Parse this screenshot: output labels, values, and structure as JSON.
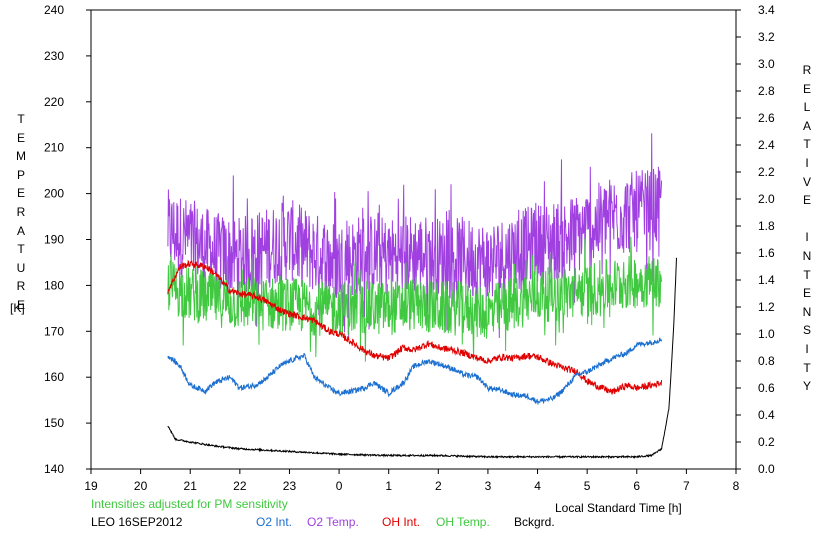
{
  "chart_data": {
    "type": "line",
    "title": "",
    "left_axis_label": "TEMPERATURE",
    "left_axis_unit": "[K]",
    "right_axis_label": "RELATIVE INTENSITY",
    "xlabel": "Local Standard Time [h]",
    "note": "Intensities adjusted for PM sensitivity",
    "station_date": "LEO 16SEP2012",
    "x_ticks": [
      "19",
      "20",
      "21",
      "22",
      "23",
      "0",
      "1",
      "2",
      "3",
      "4",
      "5",
      "6",
      "7",
      "8"
    ],
    "x_range": [
      19,
      32
    ],
    "y_left_ticks": [
      "140",
      "150",
      "160",
      "170",
      "180",
      "190",
      "200",
      "210",
      "220",
      "230",
      "240"
    ],
    "y_left_range": [
      140,
      240
    ],
    "y_right_ticks": [
      "0.0",
      "0.2",
      "0.4",
      "0.6",
      "0.8",
      "1.0",
      "1.2",
      "1.4",
      "1.6",
      "1.8",
      "2.0",
      "2.2",
      "2.4",
      "2.6",
      "2.8",
      "3.0",
      "3.2",
      "3.4"
    ],
    "y_right_range": [
      0,
      3.4
    ],
    "grid": false,
    "legend_position": "bottom",
    "series": [
      {
        "name": "O2 Temp.",
        "axis": "left",
        "color": "#a040e0",
        "amp": 9,
        "x": [
          20.55,
          21,
          21.5,
          22,
          22.5,
          23,
          23.5,
          24,
          24.5,
          25,
          25.5,
          26,
          26.5,
          27,
          27.5,
          28,
          28.5,
          29,
          29.5,
          30,
          30.5
        ],
        "y": [
          192,
          190,
          187,
          186,
          188,
          190,
          187,
          185,
          187,
          186,
          187,
          186,
          186,
          185,
          187,
          189,
          190,
          192,
          195,
          196,
          197
        ]
      },
      {
        "name": "OH Temp.",
        "axis": "left",
        "color": "#40c840",
        "amp": 6,
        "x": [
          20.55,
          21,
          21.5,
          22,
          22.5,
          23,
          23.5,
          24,
          24.5,
          25,
          25.5,
          26,
          26.5,
          27,
          27.5,
          28,
          28.5,
          29,
          29.5,
          30,
          30.5
        ],
        "y": [
          180,
          178,
          177,
          176,
          176,
          176,
          175,
          175,
          175,
          175,
          176,
          175,
          175,
          174,
          176,
          178,
          178,
          179,
          180,
          181,
          181
        ]
      },
      {
        "name": "OH Int.",
        "axis": "right",
        "color": "#e00000",
        "amp": 0.025,
        "x": [
          20.55,
          20.8,
          21,
          21.3,
          21.5,
          21.8,
          22,
          22.3,
          22.5,
          22.8,
          23,
          23.3,
          23.5,
          23.8,
          24,
          24.3,
          24.5,
          24.7,
          25,
          25.3,
          25.5,
          25.8,
          26,
          26.3,
          26.5,
          26.8,
          27,
          27.3,
          27.5,
          27.8,
          28,
          28.3,
          28.5,
          28.8,
          29,
          29.3,
          29.5,
          29.8,
          30,
          30.3,
          30.5
        ],
        "y": [
          1.32,
          1.5,
          1.52,
          1.5,
          1.45,
          1.32,
          1.3,
          1.28,
          1.25,
          1.18,
          1.15,
          1.12,
          1.1,
          1.02,
          1.0,
          0.93,
          0.88,
          0.84,
          0.82,
          0.9,
          0.88,
          0.93,
          0.9,
          0.88,
          0.86,
          0.82,
          0.8,
          0.83,
          0.82,
          0.84,
          0.83,
          0.78,
          0.75,
          0.72,
          0.65,
          0.6,
          0.57,
          0.62,
          0.6,
          0.62,
          0.64
        ]
      },
      {
        "name": "O2 Int.",
        "axis": "right",
        "color": "#1a6fd0",
        "amp": 0.02,
        "x": [
          20.55,
          20.8,
          21,
          21.3,
          21.5,
          21.8,
          22,
          22.3,
          22.5,
          22.8,
          23,
          23.3,
          23.5,
          23.8,
          24,
          24.3,
          24.5,
          24.7,
          25,
          25.3,
          25.5,
          25.8,
          26,
          26.3,
          26.5,
          26.8,
          27,
          27.3,
          27.5,
          27.8,
          28,
          28.3,
          28.5,
          28.8,
          29,
          29.3,
          29.5,
          29.8,
          30,
          30.3,
          30.5
        ],
        "y": [
          0.84,
          0.76,
          0.62,
          0.58,
          0.64,
          0.68,
          0.6,
          0.62,
          0.66,
          0.76,
          0.8,
          0.84,
          0.68,
          0.6,
          0.56,
          0.58,
          0.6,
          0.64,
          0.56,
          0.64,
          0.76,
          0.8,
          0.78,
          0.74,
          0.7,
          0.68,
          0.6,
          0.58,
          0.55,
          0.54,
          0.5,
          0.52,
          0.58,
          0.7,
          0.72,
          0.78,
          0.82,
          0.86,
          0.92,
          0.94,
          0.96
        ]
      },
      {
        "name": "Bckgrd.",
        "axis": "right",
        "color": "#000000",
        "amp": 0.006,
        "x": [
          20.55,
          20.7,
          21,
          21.5,
          22,
          22.5,
          23,
          23.5,
          24,
          25,
          26,
          27,
          28,
          29,
          29.5,
          30,
          30.3,
          30.5,
          30.65,
          30.75,
          30.8
        ],
        "y": [
          0.32,
          0.22,
          0.2,
          0.17,
          0.15,
          0.14,
          0.13,
          0.12,
          0.11,
          0.1,
          0.1,
          0.09,
          0.09,
          0.09,
          0.09,
          0.09,
          0.1,
          0.15,
          0.45,
          1.1,
          1.56
        ]
      }
    ]
  }
}
